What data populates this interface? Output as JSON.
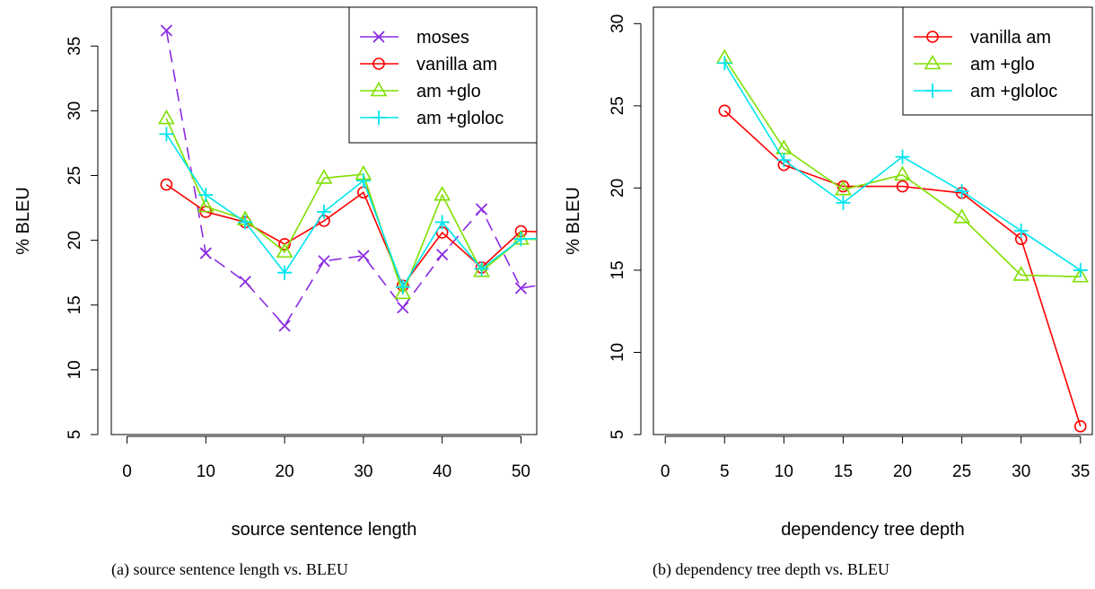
{
  "chart_data": [
    {
      "type": "line",
      "caption": "(a) source sentence length vs. BLEU",
      "xlabel": "source sentence length",
      "ylabel": "% BLEU",
      "xlim": [
        -2,
        52
      ],
      "ylim": [
        5,
        38
      ],
      "xticks": [
        0,
        10,
        20,
        30,
        40,
        50
      ],
      "yticks": [
        5,
        10,
        15,
        20,
        25,
        30,
        35
      ],
      "legend_position": "top-right",
      "series": [
        {
          "name": "moses",
          "color": "#8B2BE2",
          "marker": "x",
          "x": [
            5,
            10,
            15,
            20,
            25,
            30,
            35,
            40,
            45,
            50,
            55
          ],
          "y": [
            36.2,
            19.0,
            16.8,
            13.4,
            18.4,
            18.8,
            14.8,
            18.9,
            22.4,
            16.3,
            16.8
          ]
        },
        {
          "name": "vanilla am",
          "color": "#FF0000",
          "marker": "circle",
          "x": [
            5,
            10,
            15,
            20,
            25,
            30,
            35,
            40,
            45,
            50,
            55
          ],
          "y": [
            24.3,
            22.2,
            21.4,
            19.7,
            21.5,
            23.7,
            16.5,
            20.6,
            17.9,
            20.7,
            20.6
          ]
        },
        {
          "name": "am +glo",
          "color": "#7FE000",
          "marker": "triangle",
          "x": [
            5,
            10,
            15,
            20,
            25,
            30,
            35,
            40,
            45,
            50,
            55
          ],
          "y": [
            29.4,
            22.6,
            21.6,
            19.1,
            24.8,
            25.1,
            15.9,
            23.5,
            17.6,
            20.1,
            20.0
          ]
        },
        {
          "name": "am +gloloc",
          "color": "#00E5EE",
          "marker": "plus",
          "x": [
            5,
            10,
            15,
            20,
            25,
            30,
            35,
            40,
            45,
            50,
            55
          ],
          "y": [
            28.2,
            23.5,
            21.4,
            17.5,
            22.2,
            24.6,
            16.4,
            21.4,
            17.8,
            20.1,
            20.2
          ]
        }
      ]
    },
    {
      "type": "line",
      "caption": "(b) dependency tree depth vs. BLEU",
      "xlabel": "dependency tree depth",
      "ylabel": "% BLEU",
      "xlim": [
        -1,
        36
      ],
      "ylim": [
        5,
        31
      ],
      "xticks": [
        0,
        5,
        10,
        15,
        20,
        25,
        30,
        35
      ],
      "yticks": [
        5,
        10,
        15,
        20,
        25,
        30
      ],
      "legend_position": "top-right",
      "series": [
        {
          "name": "vanilla am",
          "color": "#FF0000",
          "marker": "circle",
          "x": [
            5,
            10,
            15,
            20,
            25,
            30,
            35
          ],
          "y": [
            24.7,
            21.4,
            20.1,
            20.1,
            19.7,
            16.9,
            5.5
          ]
        },
        {
          "name": "am +glo",
          "color": "#7FE000",
          "marker": "triangle",
          "x": [
            5,
            10,
            15,
            20,
            25,
            30,
            35
          ],
          "y": [
            27.9,
            22.4,
            19.9,
            20.8,
            18.2,
            14.7,
            14.6
          ]
        },
        {
          "name": "am +gloloc",
          "color": "#00E5EE",
          "marker": "plus",
          "x": [
            5,
            10,
            15,
            20,
            25,
            30,
            35
          ],
          "y": [
            27.6,
            21.7,
            19.1,
            21.9,
            19.8,
            17.4,
            15.0
          ]
        }
      ]
    }
  ]
}
